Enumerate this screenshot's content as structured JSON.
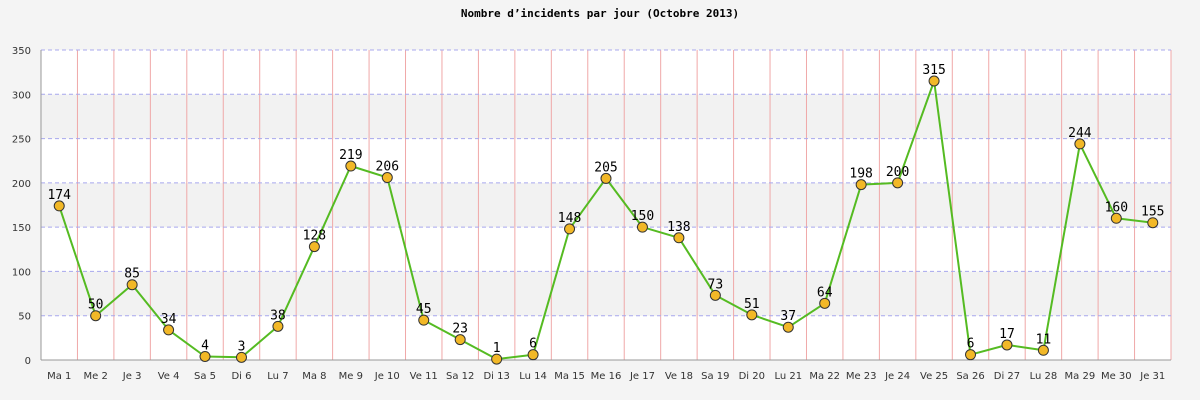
{
  "chart_data": {
    "type": "line",
    "title": "Nombre d’incidents par jour (Octobre 2013)",
    "categories": [
      "Ma 1",
      "Me 2",
      "Je 3",
      "Ve 4",
      "Sa 5",
      "Di 6",
      "Lu 7",
      "Ma 8",
      "Me 9",
      "Je 10",
      "Ve 11",
      "Sa 12",
      "Di 13",
      "Lu 14",
      "Ma 15",
      "Me 16",
      "Je 17",
      "Ve 18",
      "Sa 19",
      "Di 20",
      "Lu 21",
      "Ma 22",
      "Me 23",
      "Je 24",
      "Ve 25",
      "Sa 26",
      "Di 27",
      "Lu 28",
      "Ma 29",
      "Me 30",
      "Je 31"
    ],
    "values": [
      174,
      50,
      85,
      34,
      4,
      3,
      38,
      128,
      219,
      206,
      45,
      23,
      1,
      6,
      148,
      205,
      150,
      138,
      73,
      51,
      37,
      64,
      198,
      200,
      315,
      6,
      17,
      11,
      244,
      160,
      155
    ],
    "ylim": [
      0,
      350
    ],
    "yticks": [
      0,
      50,
      100,
      150,
      200,
      250,
      300,
      350
    ],
    "grid": true,
    "xlabel": "",
    "ylabel": "",
    "colors": {
      "line": "#55bb22",
      "marker_fill": "#f2b827",
      "marker_stroke": "#333333",
      "vgrid": "#f0a8a8",
      "hgrid": "#a8a8ee",
      "band_light": "#ffffff",
      "band_dark": "#f2f2f2"
    }
  }
}
